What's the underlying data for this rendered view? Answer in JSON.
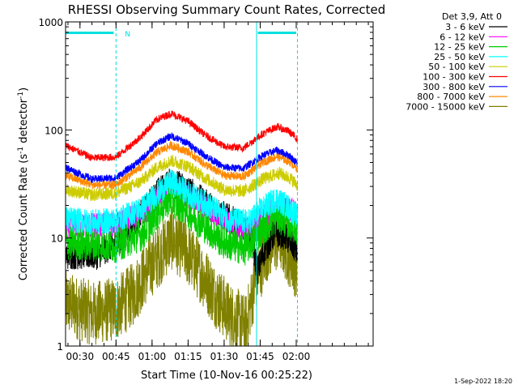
{
  "chart_data": {
    "type": "line",
    "title": "RHESSI Observing Summary Count Rates, Corrected",
    "xlabel": "Start Time (10-Nov-16 00:25:22)",
    "ylabel_main": "Corrected Count Rate (s",
    "ylabel_sup1": "-1",
    "ylabel_mid": " detector",
    "ylabel_sup2": "-1",
    "ylabel_end": ")",
    "y_scale": "log",
    "ylim": [
      1,
      1000
    ],
    "y_ticks": [
      {
        "value": 1,
        "label": "1"
      },
      {
        "value": 10,
        "label": "10"
      },
      {
        "value": 100,
        "label": "100"
      },
      {
        "value": 1000,
        "label": "1000"
      }
    ],
    "x_range_min": [
      24,
      152
    ],
    "x_ticks": [
      {
        "value": 30,
        "label": "00:30"
      },
      {
        "value": 45,
        "label": "00:45"
      },
      {
        "value": 60,
        "label": "01:00"
      },
      {
        "value": 75,
        "label": "01:15"
      },
      {
        "value": 90,
        "label": "01:30"
      },
      {
        "value": 105,
        "label": "01:45"
      },
      {
        "value": 120,
        "label": "02:00"
      }
    ],
    "legend_title": "Det 3,9, Att 0",
    "legend_position": "right",
    "series": [
      {
        "name": "3 - 6 keV",
        "color": "#000000"
      },
      {
        "name": "6 - 12 keV",
        "color": "#ff00ff"
      },
      {
        "name": "12 - 25 keV",
        "color": "#00cc00"
      },
      {
        "name": "25 - 50 keV",
        "color": "#00ffff"
      },
      {
        "name": "50 - 100 keV",
        "color": "#cccc00"
      },
      {
        "name": "100 - 300 keV",
        "color": "#ff0000"
      },
      {
        "name": "300 - 800 keV",
        "color": "#0000ff"
      },
      {
        "name": "800 - 7000 keV",
        "color": "#ff8800"
      },
      {
        "name": "7000 - 15000 keV",
        "color": "#808000"
      }
    ],
    "series_profiles": {
      "3 - 6 keV": [
        {
          "t": 24,
          "v": 7
        },
        {
          "t": 37,
          "v": 7
        },
        {
          "t": 45,
          "v": 9
        },
        {
          "t": 55,
          "v": 16
        },
        {
          "t": 62,
          "v": 26
        },
        {
          "t": 68,
          "v": 33
        },
        {
          "t": 75,
          "v": 28
        },
        {
          "t": 82,
          "v": 21
        },
        {
          "t": 90,
          "v": 16
        },
        {
          "t": 97,
          "v": 13
        },
        {
          "t": 101,
          "v": 10
        },
        {
          "t": 104,
          "v": 5
        },
        {
          "t": 107,
          "v": 8
        },
        {
          "t": 111,
          "v": 11
        },
        {
          "t": 114,
          "v": 11
        },
        {
          "t": 118,
          "v": 9
        },
        {
          "t": 121,
          "v": 7
        }
      ],
      "6 - 12 keV": [
        {
          "t": 24,
          "v": 13
        },
        {
          "t": 37,
          "v": 13
        },
        {
          "t": 46,
          "v": 13.5
        },
        {
          "t": 56,
          "v": 17
        },
        {
          "t": 63,
          "v": 24
        },
        {
          "t": 68,
          "v": 32
        },
        {
          "t": 72,
          "v": 27
        },
        {
          "t": 78,
          "v": 22
        },
        {
          "t": 86,
          "v": 17
        },
        {
          "t": 94,
          "v": 13
        },
        {
          "t": 100,
          "v": 12
        },
        {
          "t": 106,
          "v": 15
        },
        {
          "t": 113,
          "v": 20
        },
        {
          "t": 118,
          "v": 18
        },
        {
          "t": 121,
          "v": 16
        }
      ],
      "12 - 25 keV": [
        {
          "t": 24,
          "v": 9
        },
        {
          "t": 45,
          "v": 8.5
        },
        {
          "t": 56,
          "v": 11
        },
        {
          "t": 62,
          "v": 17
        },
        {
          "t": 67,
          "v": 23
        },
        {
          "t": 72,
          "v": 20
        },
        {
          "t": 80,
          "v": 14
        },
        {
          "t": 90,
          "v": 9
        },
        {
          "t": 99,
          "v": 8
        },
        {
          "t": 106,
          "v": 12
        },
        {
          "t": 112,
          "v": 16
        },
        {
          "t": 117,
          "v": 14
        },
        {
          "t": 121,
          "v": 12
        }
      ],
      "25 - 50 keV": [
        {
          "t": 24,
          "v": 15
        },
        {
          "t": 35,
          "v": 14
        },
        {
          "t": 45,
          "v": 14.5
        },
        {
          "t": 56,
          "v": 19
        },
        {
          "t": 63,
          "v": 27
        },
        {
          "t": 68,
          "v": 33
        },
        {
          "t": 74,
          "v": 27
        },
        {
          "t": 82,
          "v": 21
        },
        {
          "t": 92,
          "v": 15
        },
        {
          "t": 100,
          "v": 14
        },
        {
          "t": 106,
          "v": 19
        },
        {
          "t": 112,
          "v": 23
        },
        {
          "t": 117,
          "v": 19
        },
        {
          "t": 121,
          "v": 15
        }
      ],
      "50 - 100 keV": [
        {
          "t": 24,
          "v": 28
        },
        {
          "t": 35,
          "v": 25
        },
        {
          "t": 45,
          "v": 26
        },
        {
          "t": 55,
          "v": 33
        },
        {
          "t": 62,
          "v": 45
        },
        {
          "t": 68,
          "v": 52
        },
        {
          "t": 75,
          "v": 46
        },
        {
          "t": 82,
          "v": 36
        },
        {
          "t": 90,
          "v": 28
        },
        {
          "t": 98,
          "v": 27
        },
        {
          "t": 106,
          "v": 35
        },
        {
          "t": 113,
          "v": 40
        },
        {
          "t": 118,
          "v": 35
        },
        {
          "t": 121,
          "v": 30
        }
      ],
      "100 - 300 keV": [
        {
          "t": 24,
          "v": 72
        },
        {
          "t": 35,
          "v": 55
        },
        {
          "t": 45,
          "v": 56
        },
        {
          "t": 55,
          "v": 85
        },
        {
          "t": 62,
          "v": 125
        },
        {
          "t": 68,
          "v": 142
        },
        {
          "t": 75,
          "v": 120
        },
        {
          "t": 82,
          "v": 90
        },
        {
          "t": 90,
          "v": 70
        },
        {
          "t": 98,
          "v": 68
        },
        {
          "t": 106,
          "v": 92
        },
        {
          "t": 112,
          "v": 107
        },
        {
          "t": 117,
          "v": 97
        },
        {
          "t": 121,
          "v": 80
        }
      ],
      "300 - 800 keV": [
        {
          "t": 24,
          "v": 45
        },
        {
          "t": 35,
          "v": 35
        },
        {
          "t": 45,
          "v": 36
        },
        {
          "t": 55,
          "v": 52
        },
        {
          "t": 62,
          "v": 75
        },
        {
          "t": 68,
          "v": 88
        },
        {
          "t": 75,
          "v": 75
        },
        {
          "t": 82,
          "v": 58
        },
        {
          "t": 90,
          "v": 45
        },
        {
          "t": 98,
          "v": 44
        },
        {
          "t": 106,
          "v": 58
        },
        {
          "t": 112,
          "v": 65
        },
        {
          "t": 117,
          "v": 58
        },
        {
          "t": 121,
          "v": 48
        }
      ],
      "800 - 7000 keV": [
        {
          "t": 24,
          "v": 38
        },
        {
          "t": 35,
          "v": 31
        },
        {
          "t": 45,
          "v": 31
        },
        {
          "t": 55,
          "v": 45
        },
        {
          "t": 62,
          "v": 62
        },
        {
          "t": 68,
          "v": 72
        },
        {
          "t": 75,
          "v": 63
        },
        {
          "t": 82,
          "v": 48
        },
        {
          "t": 90,
          "v": 38
        },
        {
          "t": 98,
          "v": 37
        },
        {
          "t": 106,
          "v": 50
        },
        {
          "t": 112,
          "v": 57
        },
        {
          "t": 117,
          "v": 51
        },
        {
          "t": 121,
          "v": 43
        }
      ],
      "7000 - 15000 keV": [
        {
          "t": 24,
          "v": 2.5
        },
        {
          "t": 35,
          "v": 2
        },
        {
          "t": 45,
          "v": 2.2
        },
        {
          "t": 52,
          "v": 3
        },
        {
          "t": 58,
          "v": 5
        },
        {
          "t": 63,
          "v": 7
        },
        {
          "t": 68,
          "v": 10
        },
        {
          "t": 73,
          "v": 8
        },
        {
          "t": 80,
          "v": 5
        },
        {
          "t": 86,
          "v": 3
        },
        {
          "t": 92,
          "v": 2
        },
        {
          "t": 99,
          "v": 1.5
        },
        {
          "t": 103,
          "v": 4
        },
        {
          "t": 108,
          "v": 8
        },
        {
          "t": 113,
          "v": 10
        },
        {
          "t": 117,
          "v": 7
        },
        {
          "t": 121,
          "v": 5
        }
      ]
    },
    "series_noise": [
      0.14,
      0.12,
      0.16,
      0.12,
      0.06,
      0.035,
      0.035,
      0.04,
      0.3
    ],
    "night_lines_min": [
      45,
      103.5,
      120.5
    ],
    "daylight_lines_min": [
      24,
      103.5
    ],
    "status_bars": [
      {
        "start": 24,
        "end": 44,
        "label": "N"
      },
      {
        "start": 104,
        "end": 120,
        "label": ""
      }
    ]
  },
  "footer_timestamp": "1-Sep-2022 18:20"
}
